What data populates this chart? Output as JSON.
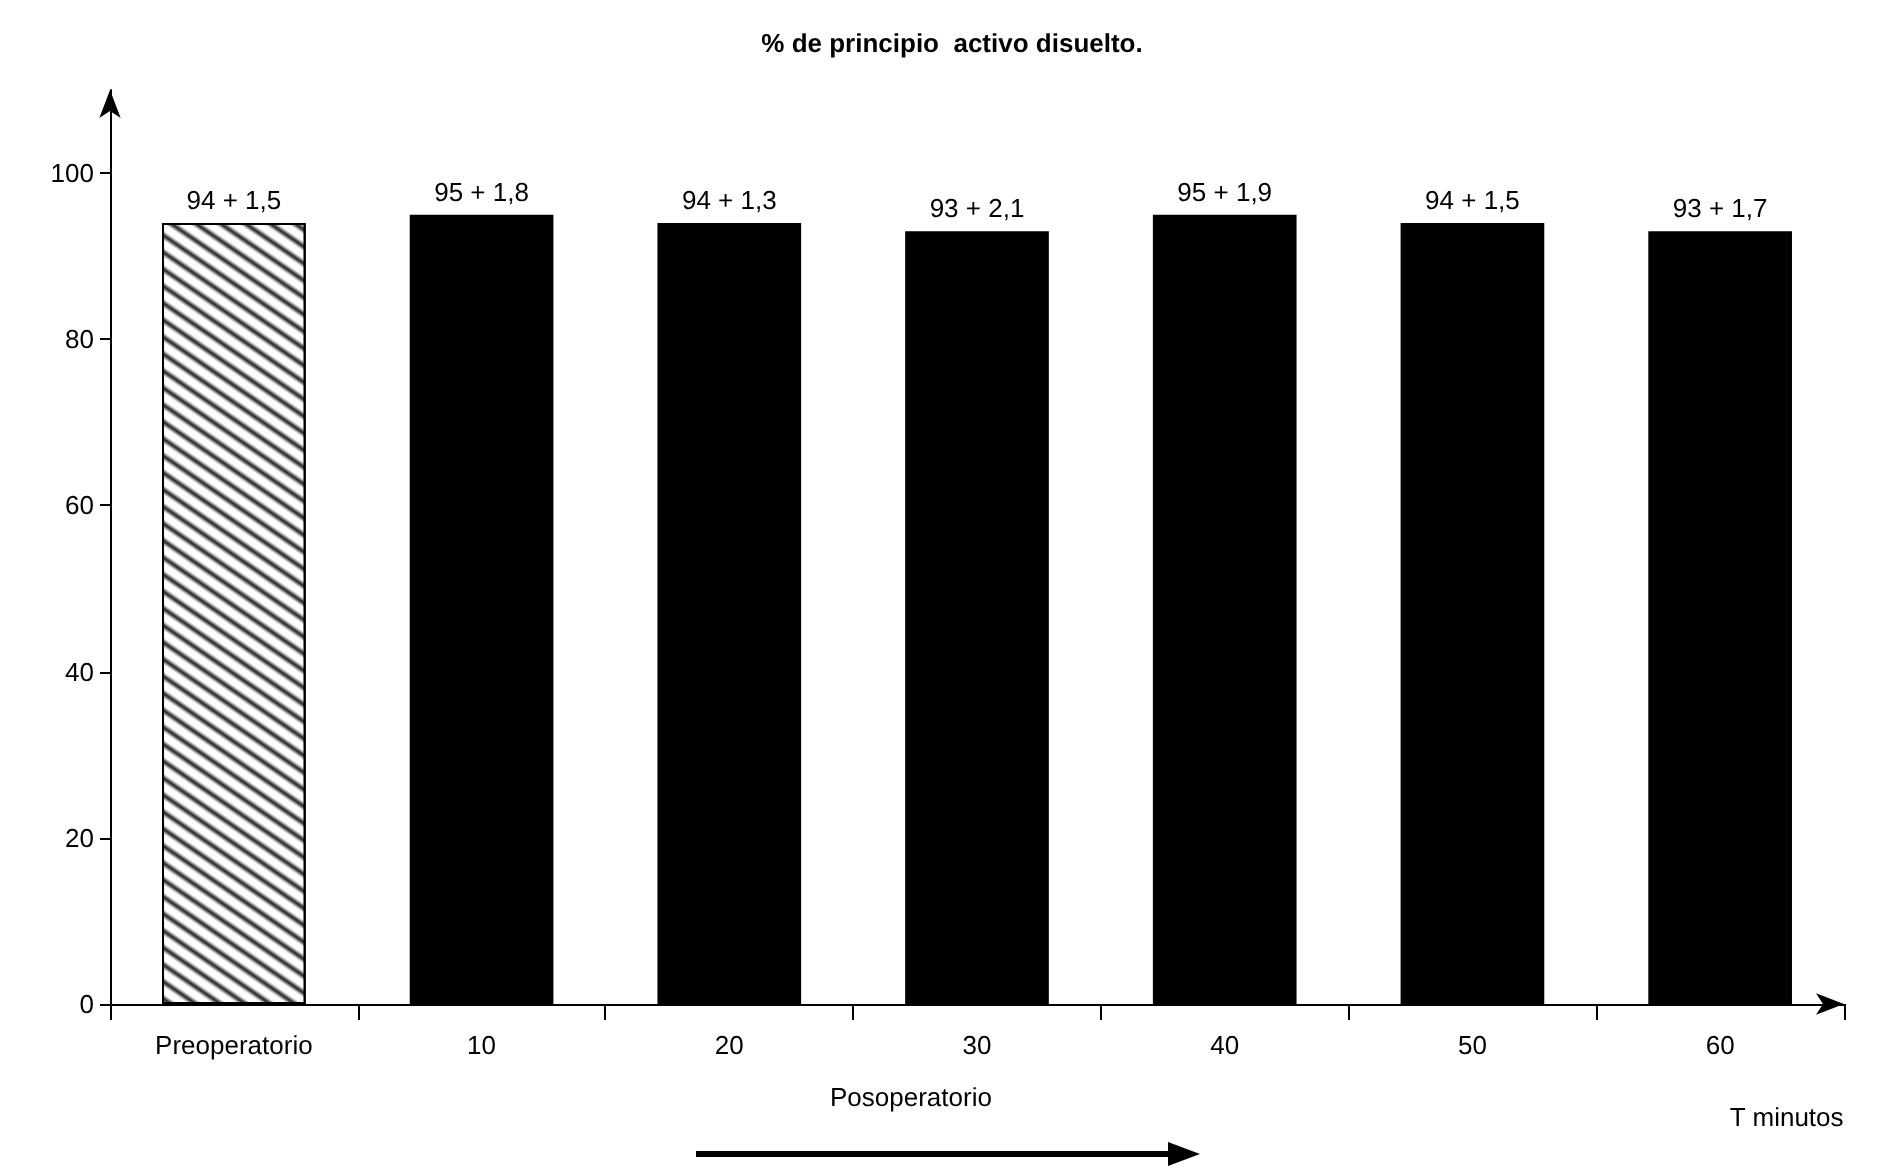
{
  "chart_data": {
    "type": "bar",
    "title": "% de principio  activo disuelto.",
    "xlabel": "T minutos",
    "annotations": [
      "Posoperatorio"
    ],
    "categories": [
      "Preoperatorio",
      "10",
      "20",
      "30",
      "40",
      "50",
      "60"
    ],
    "values": [
      94,
      95,
      94,
      93,
      95,
      94,
      93
    ],
    "colors": [
      "#ffffff",
      "#000000",
      "#000000",
      "#000000",
      "#000000",
      "#000000",
      "#000000"
    ],
    "value_labels": [
      "94 + 1,5",
      "95 + 1,8",
      "94 + 1,3",
      "93 + 2,1",
      "95 + 1,9",
      "94 + 1,5",
      "93 + 1,7"
    ],
    "ylim": [
      0,
      110
    ],
    "yticks": [
      0,
      20,
      40,
      60,
      80,
      100
    ],
    "grid": false
  }
}
